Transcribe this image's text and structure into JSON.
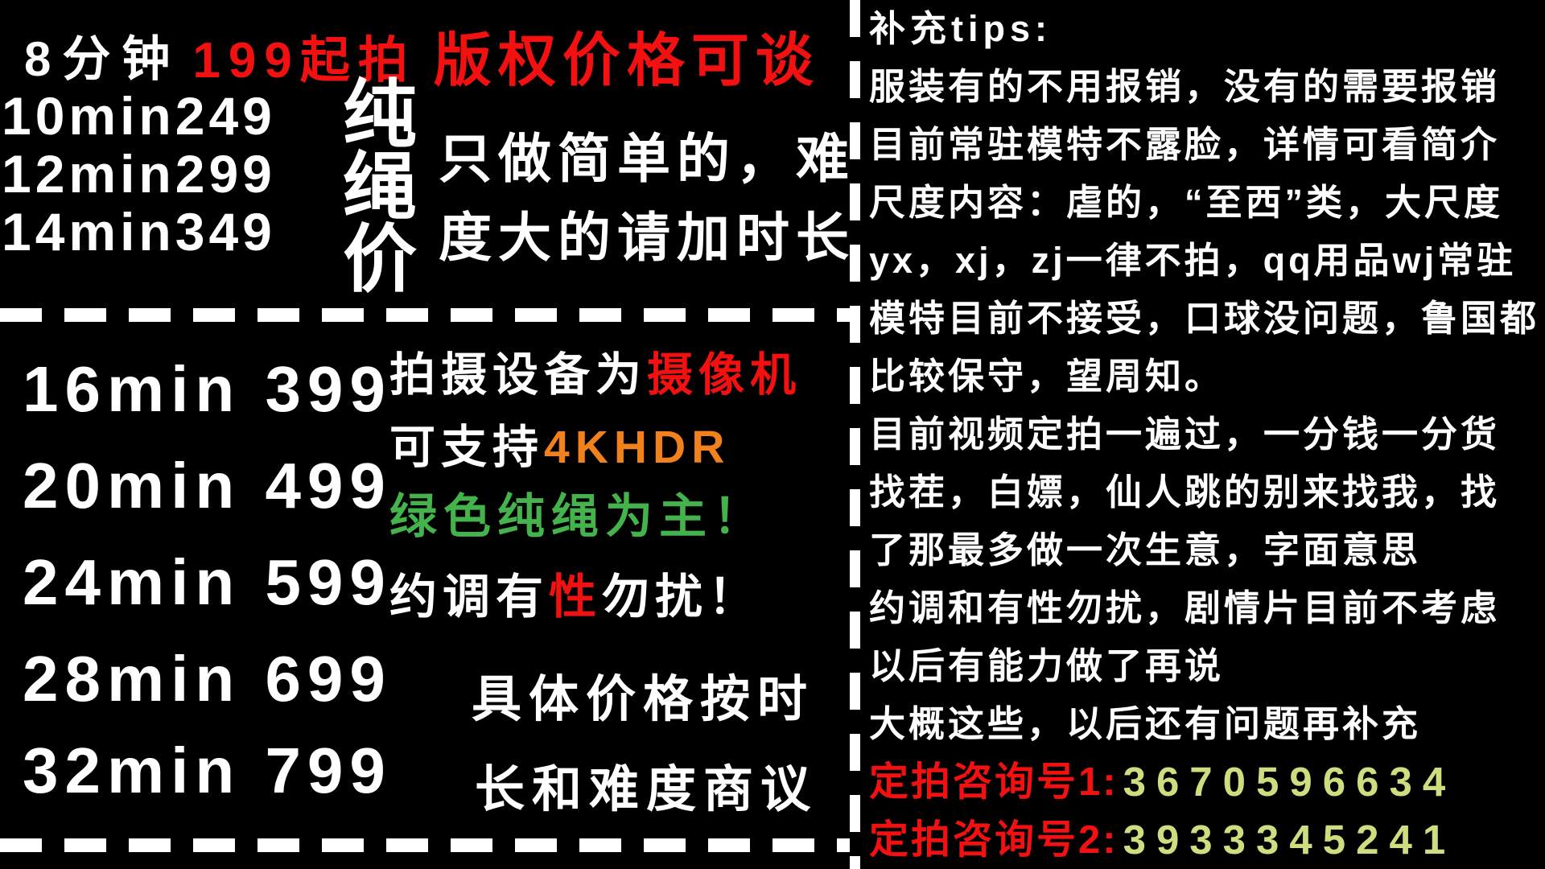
{
  "colors": {
    "background": "#000000",
    "text": "#ffffff",
    "accent_red": "#f21010",
    "accent_orange": "#f0811c",
    "accent_green": "#44b34c",
    "accent_yellow_green": "#cede7f"
  },
  "left_panel": {
    "top": {
      "duration_8": "8分钟",
      "price_8": "199起拍",
      "copyright_note": "版权价格可谈",
      "tiers": [
        "10min249",
        "12min299",
        "14min349"
      ],
      "vertical_title": [
        "纯",
        "绳",
        "价"
      ],
      "note_line1": "只做简单的，难",
      "note_line2": "度大的请加时长"
    },
    "bottom": {
      "tiers": [
        "16min 399",
        "20min 499",
        "24min 599",
        "28min 699",
        "32min 799"
      ],
      "equipment_prefix": "拍摄设备为",
      "equipment_highlight": "摄像机",
      "support_prefix": "可支持",
      "support_highlight": "4KHDR",
      "green_slogan": "绿色纯绳为主！",
      "warn_prefix": "约调有",
      "warn_highlight": "性",
      "warn_suffix": "勿扰！",
      "pricing_note_line1": "具体价格按时",
      "pricing_note_line2": "长和难度商议"
    }
  },
  "right_panel": {
    "title": "补充tips:",
    "tips": [
      "服装有的不用报销，没有的需要报销",
      "目前常驻模特不露脸，详情可看简介",
      "尺度内容：虐的，“至西”类，大尺度",
      "yx，xj，zj一律不拍，qq用品wj常驻",
      "模特目前不接受，口球没问题，鲁国都",
      "比较保守，望周知。",
      "目前视频定拍一遍过，一分钱一分货",
      "找茬，白嫖，仙人跳的别来找我，找",
      "了那最多做一次生意，字面意思",
      "约调和有性勿扰，剧情片目前不考虑",
      "以后有能力做了再说",
      "大概这些，以后还有问题再补充"
    ],
    "contacts": [
      {
        "label": "定拍咨询号1:",
        "number": "3670596634"
      },
      {
        "label": "定拍咨询号2:",
        "number": "3933345241"
      }
    ]
  }
}
